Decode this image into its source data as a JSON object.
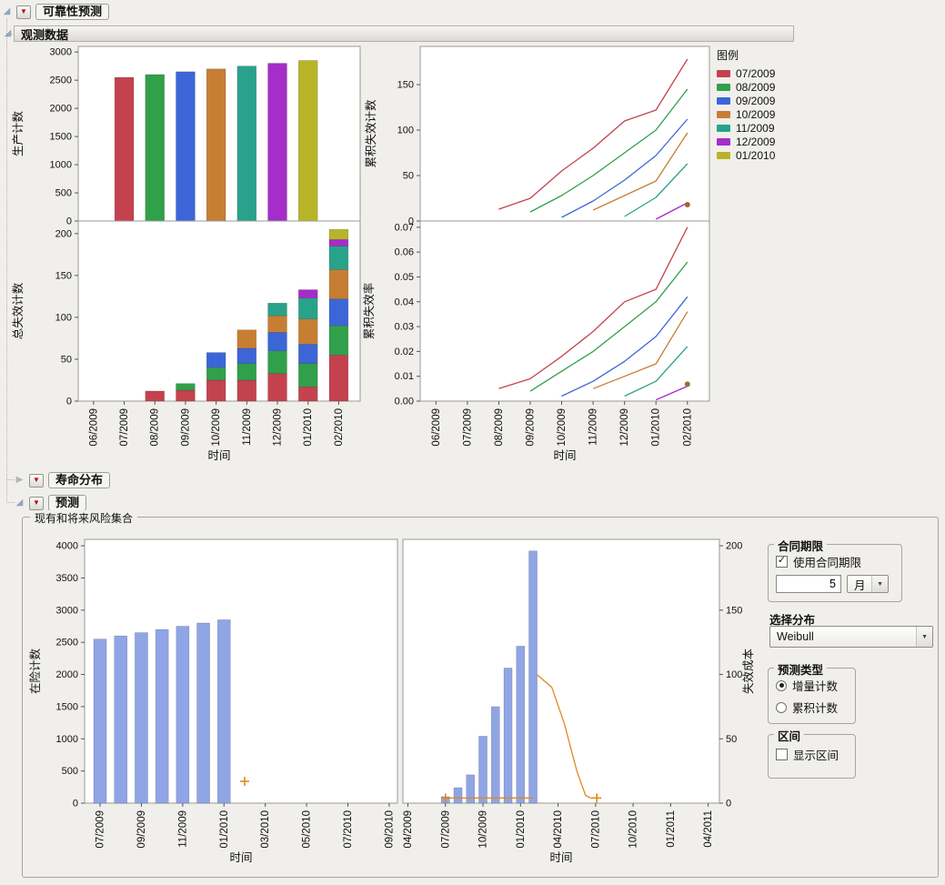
{
  "sections": {
    "reliability_forecast": {
      "title": "可靠性预测"
    },
    "observed_data": {
      "title": "观测数据"
    },
    "life_distribution": {
      "title": "寿命分布"
    },
    "forecast": {
      "title": "预测"
    },
    "risk_set": {
      "title": "现有和将来风险集合"
    }
  },
  "legend": {
    "title": "图例",
    "entries": [
      {
        "label": "07/2009",
        "color": "#c4424e"
      },
      {
        "label": "08/2009",
        "color": "#31a04a"
      },
      {
        "label": "09/2009",
        "color": "#3c66d8"
      },
      {
        "label": "10/2009",
        "color": "#c67e33"
      },
      {
        "label": "11/2009",
        "color": "#29a28b"
      },
      {
        "label": "12/2009",
        "color": "#a52dc9"
      },
      {
        "label": "01/2010",
        "color": "#b8b428"
      }
    ]
  },
  "controls": {
    "contract": {
      "title": "合同期限",
      "use_contract_label": "使用合同期限",
      "use_contract_checked": true,
      "length_value": "5",
      "unit_value": "月"
    },
    "distribution": {
      "label": "选择分布",
      "value": "Weibull"
    },
    "forecast_type": {
      "title": "预测类型",
      "options": [
        {
          "label": "增量计数",
          "selected": true
        },
        {
          "label": "累积计数",
          "selected": false
        }
      ]
    },
    "interval": {
      "title": "区间",
      "show_label": "显示区间",
      "checked": false
    }
  },
  "chart_data": [
    {
      "id": "production_count",
      "type": "bar",
      "ylabel": "生产计数",
      "ylim": [
        0,
        3100
      ],
      "yticks": [
        0,
        500,
        1000,
        1500,
        2000,
        2500,
        3000
      ],
      "ytick_labels": [
        "0",
        "500",
        "1000",
        "1500",
        "2000",
        "2500",
        "3000"
      ],
      "x": {
        "min": -0.5,
        "max": 8.7,
        "ticks": [
          0,
          1,
          2,
          3,
          4,
          5,
          6,
          7,
          8
        ],
        "tick_labels": [
          "06/2009",
          "07/2009",
          "08/2009",
          "09/2009",
          "10/2009",
          "11/2009",
          "12/2009",
          "01/2010",
          "02/2010"
        ],
        "show_tick_labels": false,
        "label": ""
      },
      "bars": [
        {
          "x": 1,
          "v": 2550,
          "color": "#c4424e"
        },
        {
          "x": 2,
          "v": 2600,
          "color": "#31a04a"
        },
        {
          "x": 3,
          "v": 2650,
          "color": "#3c66d8"
        },
        {
          "x": 4,
          "v": 2700,
          "color": "#c67e33"
        },
        {
          "x": 5,
          "v": 2750,
          "color": "#29a28b"
        },
        {
          "x": 6,
          "v": 2800,
          "color": "#a52dc9"
        },
        {
          "x": 7,
          "v": 2850,
          "color": "#b8b428"
        }
      ]
    },
    {
      "id": "cum_failure_count",
      "type": "line",
      "ylabel": "累积失效计数",
      "ylim": [
        0,
        192
      ],
      "yticks": [
        0,
        50,
        100,
        150
      ],
      "ytick_labels": [
        "0",
        "50",
        "100",
        "150"
      ],
      "x": {
        "min": -0.5,
        "max": 8.7,
        "ticks": [
          0,
          1,
          2,
          3,
          4,
          5,
          6,
          7,
          8
        ],
        "tick_labels": [
          "06/2009",
          "07/2009",
          "08/2009",
          "09/2009",
          "10/2009",
          "11/2009",
          "12/2009",
          "01/2010",
          "02/2010"
        ],
        "show_tick_labels": false,
        "label": ""
      },
      "lines": [
        {
          "name": "07/2009",
          "color": "#c4424e",
          "points": [
            [
              2,
              13
            ],
            [
              3,
              25
            ],
            [
              4,
              55
            ],
            [
              5,
              80
            ],
            [
              6,
              110
            ],
            [
              7,
              122
            ],
            [
              8,
              178
            ]
          ]
        },
        {
          "name": "08/2009",
          "color": "#31a04a",
          "points": [
            [
              3,
              10
            ],
            [
              4,
              28
            ],
            [
              5,
              50
            ],
            [
              6,
              75
            ],
            [
              7,
              100
            ],
            [
              8,
              145
            ]
          ]
        },
        {
          "name": "09/2009",
          "color": "#3c66d8",
          "points": [
            [
              4,
              4
            ],
            [
              5,
              22
            ],
            [
              6,
              45
            ],
            [
              7,
              72
            ],
            [
              8,
              112
            ]
          ]
        },
        {
          "name": "10/2009",
          "color": "#c67e33",
          "points": [
            [
              5,
              12
            ],
            [
              6,
              28
            ],
            [
              7,
              44
            ],
            [
              8,
              97
            ]
          ]
        },
        {
          "name": "11/2009",
          "color": "#29a28b",
          "points": [
            [
              6,
              5
            ],
            [
              7,
              26
            ],
            [
              8,
              63
            ]
          ]
        },
        {
          "name": "12/2009",
          "color": "#a52dc9",
          "points": [
            [
              7,
              2
            ],
            [
              8,
              20
            ]
          ]
        }
      ],
      "markers": [
        {
          "x": 8,
          "v": 18,
          "shape": "dot",
          "color": "#9c6b30"
        }
      ]
    },
    {
      "id": "total_failure_count",
      "type": "stacked_bar",
      "ylabel": "总失效计数",
      "ylim": [
        0,
        215
      ],
      "yticks": [
        0,
        50,
        100,
        150,
        200
      ],
      "ytick_labels": [
        "0",
        "50",
        "100",
        "150",
        "200"
      ],
      "x": {
        "min": -0.5,
        "max": 8.7,
        "ticks": [
          0,
          1,
          2,
          3,
          4,
          5,
          6,
          7,
          8
        ],
        "tick_labels": [
          "06/2009",
          "07/2009",
          "08/2009",
          "09/2009",
          "10/2009",
          "11/2009",
          "12/2009",
          "01/2010",
          "02/2010"
        ],
        "show_tick_labels": true,
        "label": "时间"
      },
      "stacks": [
        {
          "x": 2,
          "segments": [
            {
              "v": 12,
              "color": "#c4424e"
            }
          ]
        },
        {
          "x": 3,
          "segments": [
            {
              "v": 13,
              "color": "#c4424e"
            },
            {
              "v": 8,
              "color": "#31a04a"
            }
          ]
        },
        {
          "x": 4,
          "segments": [
            {
              "v": 25,
              "color": "#c4424e"
            },
            {
              "v": 15,
              "color": "#31a04a"
            },
            {
              "v": 18,
              "color": "#3c66d8"
            }
          ]
        },
        {
          "x": 5,
          "segments": [
            {
              "v": 25,
              "color": "#c4424e"
            },
            {
              "v": 20,
              "color": "#31a04a"
            },
            {
              "v": 18,
              "color": "#3c66d8"
            },
            {
              "v": 22,
              "color": "#c67e33"
            }
          ]
        },
        {
          "x": 6,
          "segments": [
            {
              "v": 33,
              "color": "#c4424e"
            },
            {
              "v": 27,
              "color": "#31a04a"
            },
            {
              "v": 22,
              "color": "#3c66d8"
            },
            {
              "v": 20,
              "color": "#c67e33"
            },
            {
              "v": 15,
              "color": "#29a28b"
            }
          ]
        },
        {
          "x": 7,
          "segments": [
            {
              "v": 17,
              "color": "#c4424e"
            },
            {
              "v": 28,
              "color": "#31a04a"
            },
            {
              "v": 23,
              "color": "#3c66d8"
            },
            {
              "v": 30,
              "color": "#c67e33"
            },
            {
              "v": 25,
              "color": "#29a28b"
            },
            {
              "v": 10,
              "color": "#a52dc9"
            }
          ]
        },
        {
          "x": 8,
          "segments": [
            {
              "v": 55,
              "color": "#c4424e"
            },
            {
              "v": 35,
              "color": "#31a04a"
            },
            {
              "v": 32,
              "color": "#3c66d8"
            },
            {
              "v": 35,
              "color": "#c67e33"
            },
            {
              "v": 28,
              "color": "#29a28b"
            },
            {
              "v": 8,
              "color": "#a52dc9"
            },
            {
              "v": 12,
              "color": "#b8b428"
            }
          ]
        }
      ]
    },
    {
      "id": "cum_failure_rate",
      "type": "line",
      "ylabel": "累积失效率",
      "ylim": [
        0,
        0.0725
      ],
      "yticks": [
        0,
        0.01,
        0.02,
        0.03,
        0.04,
        0.05,
        0.06,
        0.07
      ],
      "ytick_labels": [
        "0.00",
        "0.01",
        "0.02",
        "0.03",
        "0.04",
        "0.05",
        "0.06",
        "0.07"
      ],
      "x": {
        "min": -0.5,
        "max": 8.7,
        "ticks": [
          0,
          1,
          2,
          3,
          4,
          5,
          6,
          7,
          8
        ],
        "tick_labels": [
          "06/2009",
          "07/2009",
          "08/2009",
          "09/2009",
          "10/2009",
          "11/2009",
          "12/2009",
          "01/2010",
          "02/2010"
        ],
        "show_tick_labels": true,
        "label": "时间"
      },
      "lines": [
        {
          "name": "07/2009",
          "color": "#c4424e",
          "points": [
            [
              2,
              0.005
            ],
            [
              3,
              0.009
            ],
            [
              4,
              0.018
            ],
            [
              5,
              0.028
            ],
            [
              6,
              0.04
            ],
            [
              7,
              0.045
            ],
            [
              8,
              0.07
            ]
          ]
        },
        {
          "name": "08/2009",
          "color": "#31a04a",
          "points": [
            [
              3,
              0.004
            ],
            [
              4,
              0.012
            ],
            [
              5,
              0.02
            ],
            [
              6,
              0.03
            ],
            [
              7,
              0.04
            ],
            [
              8,
              0.056
            ]
          ]
        },
        {
          "name": "09/2009",
          "color": "#3c66d8",
          "points": [
            [
              4,
              0.002
            ],
            [
              5,
              0.008
            ],
            [
              6,
              0.016
            ],
            [
              7,
              0.026
            ],
            [
              8,
              0.042
            ]
          ]
        },
        {
          "name": "10/2009",
          "color": "#c67e33",
          "points": [
            [
              5,
              0.005
            ],
            [
              6,
              0.01
            ],
            [
              7,
              0.015
            ],
            [
              8,
              0.036
            ]
          ]
        },
        {
          "name": "11/2009",
          "color": "#29a28b",
          "points": [
            [
              6,
              0.002
            ],
            [
              7,
              0.008
            ],
            [
              8,
              0.022
            ]
          ]
        },
        {
          "name": "12/2009",
          "color": "#a52dc9",
          "points": [
            [
              7,
              0.0005
            ],
            [
              8,
              0.006
            ]
          ]
        }
      ],
      "markers": [
        {
          "x": 8,
          "v": 0.0068,
          "shape": "dot",
          "color": "#9c6b30"
        }
      ]
    },
    {
      "id": "at_risk_count",
      "type": "bar",
      "ylabel": "在险计数",
      "ylim": [
        0,
        4100
      ],
      "yticks": [
        0,
        500,
        1000,
        1500,
        2000,
        2500,
        3000,
        3500,
        4000
      ],
      "ytick_labels": [
        "0",
        "500",
        "1000",
        "1500",
        "2000",
        "2500",
        "3000",
        "3500",
        "4000"
      ],
      "x": {
        "min": -0.75,
        "max": 14.4,
        "ticks": [
          0,
          2,
          4,
          6,
          8,
          10,
          12,
          14
        ],
        "tick_labels": [
          "07/2009",
          "09/2009",
          "11/2009",
          "01/2010",
          "03/2010",
          "05/2010",
          "07/2010",
          "09/2010"
        ],
        "show_tick_labels": true,
        "label": "时间"
      },
      "bar_color": "#8fa5e5",
      "bars": [
        {
          "x": 0,
          "v": 2550
        },
        {
          "x": 1,
          "v": 2600
        },
        {
          "x": 2,
          "v": 2650
        },
        {
          "x": 3,
          "v": 2700
        },
        {
          "x": 4,
          "v": 2750
        },
        {
          "x": 5,
          "v": 2800
        },
        {
          "x": 6,
          "v": 2850
        }
      ],
      "markers": [
        {
          "x": 7,
          "v": 340,
          "shape": "plus",
          "color": "#df8a1f"
        }
      ]
    },
    {
      "id": "failure_cost",
      "type": "bar",
      "ylabel": "失效成本",
      "yaxis_side": "right",
      "ylim": [
        0,
        205
      ],
      "yticks": [
        0,
        50,
        100,
        150,
        200
      ],
      "ytick_labels": [
        "0",
        "50",
        "100",
        "150",
        "200"
      ],
      "x": {
        "min": -0.4,
        "max": 24.9,
        "ticks": [
          0,
          3,
          6,
          9,
          12,
          15,
          18,
          21,
          24
        ],
        "tick_labels": [
          "04/2009",
          "07/2009",
          "10/2009",
          "01/2010",
          "04/2010",
          "07/2010",
          "10/2010",
          "01/2011",
          "04/2011"
        ],
        "show_tick_labels": true,
        "label": "时间"
      },
      "bar_color": "#8fa5e5",
      "bars": [
        {
          "x": 3,
          "v": 5
        },
        {
          "x": 4,
          "v": 12
        },
        {
          "x": 5,
          "v": 22
        },
        {
          "x": 6,
          "v": 52
        },
        {
          "x": 7,
          "v": 75
        },
        {
          "x": 8,
          "v": 105
        },
        {
          "x": 9,
          "v": 122
        },
        {
          "x": 10,
          "v": 196
        }
      ],
      "lines": [
        {
          "name": "observed-baseline",
          "color": "#df8a1f",
          "points": [
            [
              3,
              4
            ],
            [
              10,
              4
            ]
          ]
        },
        {
          "name": "forecast-curve",
          "color": "#df8a1f",
          "points": [
            [
              10.3,
              100
            ],
            [
              11.5,
              90
            ],
            [
              12.5,
              62
            ],
            [
              13.5,
              25
            ],
            [
              14.2,
              6
            ],
            [
              14.6,
              4
            ],
            [
              15.1,
              4
            ]
          ]
        }
      ],
      "markers": [
        {
          "x": 3,
          "v": 4,
          "shape": "plus",
          "color": "#df8a1f"
        },
        {
          "x": 15.1,
          "v": 4,
          "shape": "plus",
          "color": "#df8a1f"
        }
      ]
    }
  ]
}
